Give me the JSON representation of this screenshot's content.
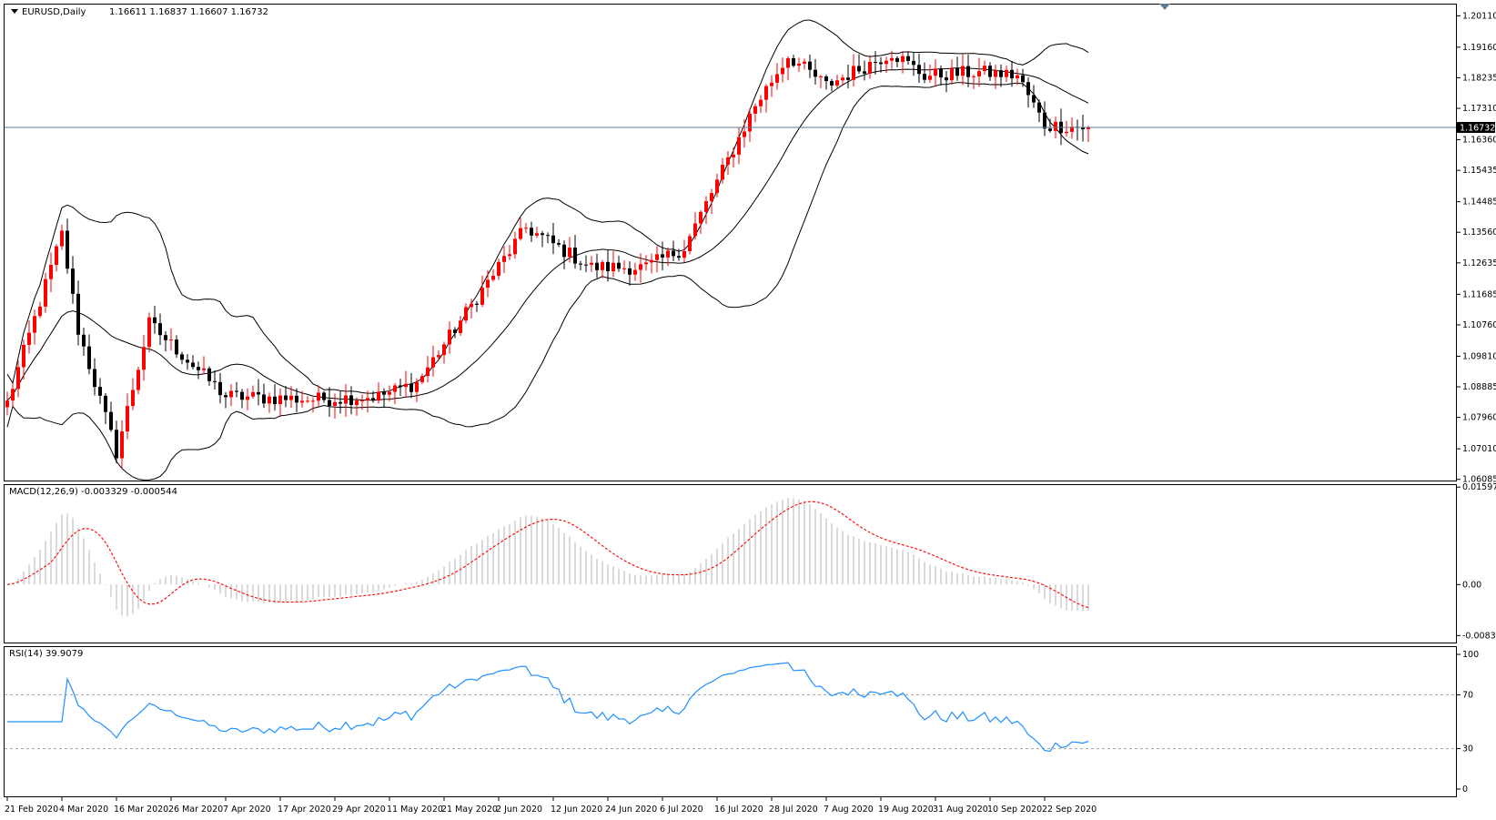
{
  "chart_data": [
    {
      "type": "candlestick",
      "symbol_label": "EURUSD,Daily",
      "ohlc_header": "1.16611 1.16837 1.16607 1.16732",
      "current_price_label": "1.16732",
      "current_price": 1.16732,
      "ylim": [
        1.0605,
        1.2045
      ],
      "y_ticks": [
        "1.20110",
        "1.19160",
        "1.18235",
        "1.17310",
        "1.16360",
        "1.15435",
        "1.14485",
        "1.13560",
        "1.12635",
        "1.11685",
        "1.10760",
        "1.09810",
        "1.08885",
        "1.07960",
        "1.07010",
        "1.06085"
      ],
      "x_ticks": [
        "21 Feb 2020",
        "4 Mar 2020",
        "16 Mar 2020",
        "26 Mar 2020",
        "7 Apr 2020",
        "17 Apr 2020",
        "29 Apr 2020",
        "11 May 2020",
        "21 May 2020",
        "2 Jun 2020",
        "12 Jun 2020",
        "24 Jun 2020",
        "6 Jul 2020",
        "16 Jul 2020",
        "28 Jul 2020",
        "7 Aug 2020",
        "19 Aug 2020",
        "31 Aug 2020",
        "10 Sep 2020",
        "22 Sep 2020"
      ],
      "bollinger_bands": {
        "period": 20,
        "lines": [
          "upper",
          "middle",
          "lower"
        ]
      },
      "colors": {
        "up": "#ff0000",
        "down": "#000000",
        "bands": "#000000",
        "price_line": "#5f7a95"
      }
    },
    {
      "type": "macd",
      "label": "MACD(12,26,9) -0.003329 -0.000544",
      "y_ticks": [
        "0.01597",
        "0.00",
        "-0.008352"
      ],
      "ylim": [
        -0.0095,
        0.0163
      ],
      "colors": {
        "histogram": "#b4b4b4",
        "signal": "#ff0000"
      }
    },
    {
      "type": "rsi",
      "label": "RSI(14) 39.9079",
      "y_ticks": [
        "100",
        "70",
        "30",
        "0"
      ],
      "levels": [
        70,
        30
      ],
      "ylim": [
        0,
        100
      ],
      "colors": {
        "line": "#1e90ff",
        "levels": "#a0a0a0"
      }
    }
  ]
}
